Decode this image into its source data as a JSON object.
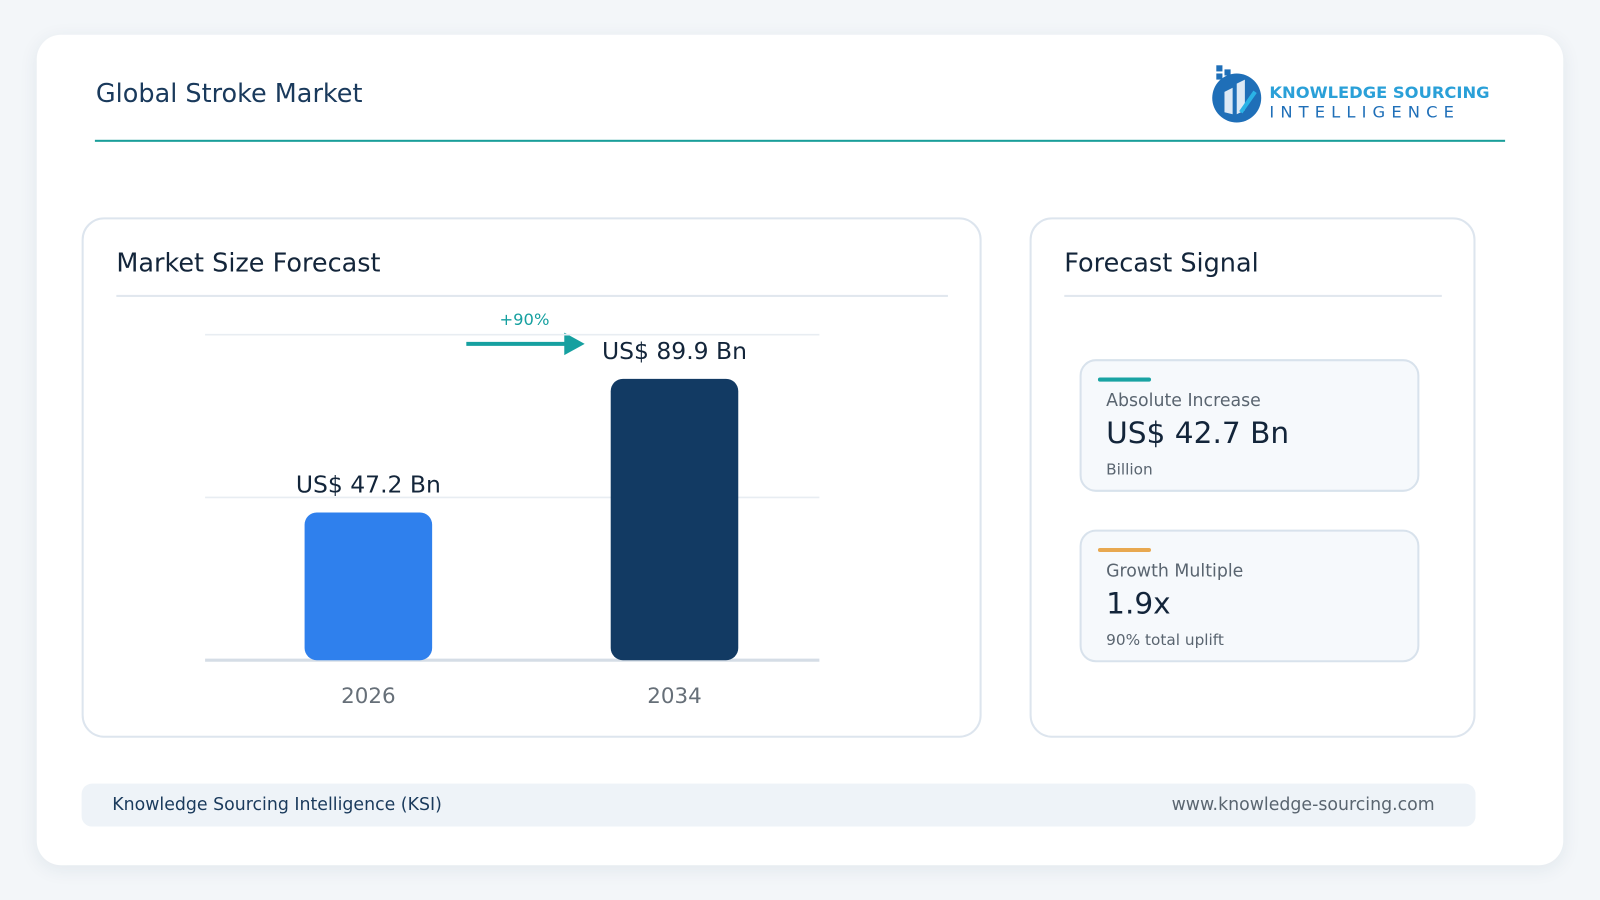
{
  "header": {
    "title": "Global Stroke Market",
    "logo": {
      "line1": "KNOWLEDGE SOURCING",
      "line2": "INTELLIGENCE"
    }
  },
  "chart_data": {
    "type": "bar",
    "title": "Market Size Forecast",
    "annotation": "+90%",
    "categories": [
      "2026",
      "2034"
    ],
    "values": [
      47.2,
      89.9
    ],
    "value_labels": [
      "US$ 47.2 Bn",
      "US$ 89.9 Bn"
    ],
    "colors": [
      "#2f80ed",
      "#123a63"
    ],
    "ylim": [
      0,
      104
    ],
    "yticks": [
      0,
      52,
      104
    ],
    "grid": true
  },
  "signal": {
    "title": "Forecast Signal",
    "cards": [
      {
        "label": "Absolute Increase",
        "value": "US$ 42.7 Bn",
        "note": "Billion",
        "accent": "#19a3a3"
      },
      {
        "label": "Growth Multiple",
        "value": "1.9x",
        "note": "90% total uplift",
        "accent": "#e8a850"
      }
    ]
  },
  "footer": {
    "left": "Knowledge Sourcing Intelligence (KSI)",
    "right": "www.knowledge-sourcing.com"
  }
}
